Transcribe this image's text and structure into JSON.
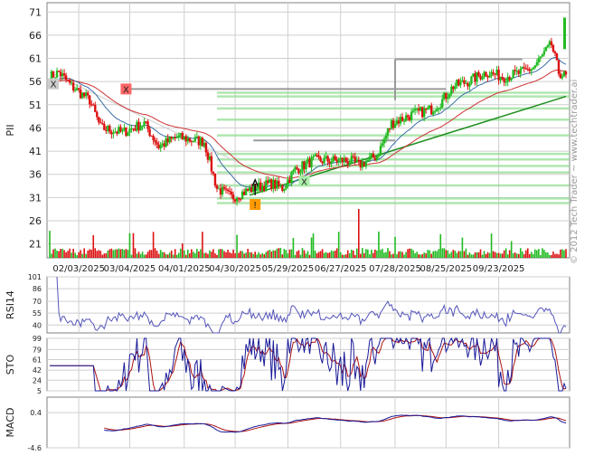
{
  "watermark": "© 2012 Tech Trader ~ www.techtrader.ai",
  "colors": {
    "up": "#22bb22",
    "down": "#dd1111",
    "ma_fast": "#3a6ea5",
    "ma_slow": "#cc3333",
    "trend": "#1f8f1f",
    "support_band": "#8fdc8f",
    "resistance": "#9a9a9a",
    "rsi": "#5555bb",
    "sto_k": "#1a1a99",
    "sto_d": "#aa1111",
    "macd": "#1a1a99",
    "signal": "#aa1111",
    "grid": "#cfcfcf"
  },
  "chart_data": [
    {
      "type": "candlestick",
      "ylabel": "PII",
      "ylim": [
        18,
        73
      ],
      "yticks": [
        21,
        26,
        31,
        36,
        41,
        46,
        51,
        56,
        61,
        66,
        71
      ],
      "x_labels": [
        "02/03/2025",
        "03/04/2025",
        "04/01/2025",
        "04/30/2025",
        "05/29/2025",
        "06/27/2025",
        "07/28/2025",
        "08/25/2025",
        "09/23/2025"
      ],
      "price_path": [
        [
          0,
          57
        ],
        [
          5,
          58
        ],
        [
          12,
          55
        ],
        [
          22,
          52
        ],
        [
          28,
          46
        ],
        [
          40,
          45
        ],
        [
          52,
          47
        ],
        [
          60,
          42
        ],
        [
          70,
          44
        ],
        [
          85,
          43
        ],
        [
          92,
          33
        ],
        [
          100,
          31
        ],
        [
          112,
          33
        ],
        [
          122,
          34
        ],
        [
          128,
          33
        ],
        [
          135,
          37
        ],
        [
          145,
          39
        ],
        [
          155,
          39
        ],
        [
          165,
          39
        ],
        [
          170,
          38
        ],
        [
          180,
          40
        ],
        [
          188,
          47
        ],
        [
          200,
          49
        ],
        [
          210,
          50
        ],
        [
          216,
          52
        ],
        [
          222,
          55
        ],
        [
          230,
          56
        ],
        [
          240,
          58
        ],
        [
          250,
          57
        ],
        [
          260,
          58
        ],
        [
          266,
          59
        ],
        [
          272,
          62
        ],
        [
          276,
          64
        ],
        [
          280,
          58
        ],
        [
          284,
          57
        ]
      ],
      "markers": [
        {
          "label": "X",
          "color": "#ff6666",
          "bar": 42,
          "value": 54.4
        },
        {
          "label": "X",
          "color": "#cccccc",
          "bar": 2,
          "value": 55.5
        },
        {
          "label": "X",
          "color": "#aaeeaa",
          "bar": 140,
          "value": 34.5
        },
        {
          "label": "!",
          "color": "#ff9900",
          "bar": 113,
          "value": 29.5
        }
      ],
      "last_candle": {
        "open": 63,
        "close": 69.8
      }
    },
    {
      "type": "bar",
      "name": "volume"
    },
    {
      "type": "line",
      "ylabel": "RSI14",
      "ylim": [
        30,
        101
      ],
      "yticks": [
        101,
        86,
        70,
        55,
        40
      ]
    },
    {
      "type": "line",
      "ylabel": "STO",
      "ylim": [
        5,
        99
      ],
      "yticks": [
        99,
        79,
        61,
        42,
        24,
        5
      ]
    },
    {
      "type": "line",
      "ylabel": "MACD",
      "ylim": [
        -4.6,
        2.6
      ],
      "yticks": [
        0.4,
        -4.6
      ]
    }
  ]
}
